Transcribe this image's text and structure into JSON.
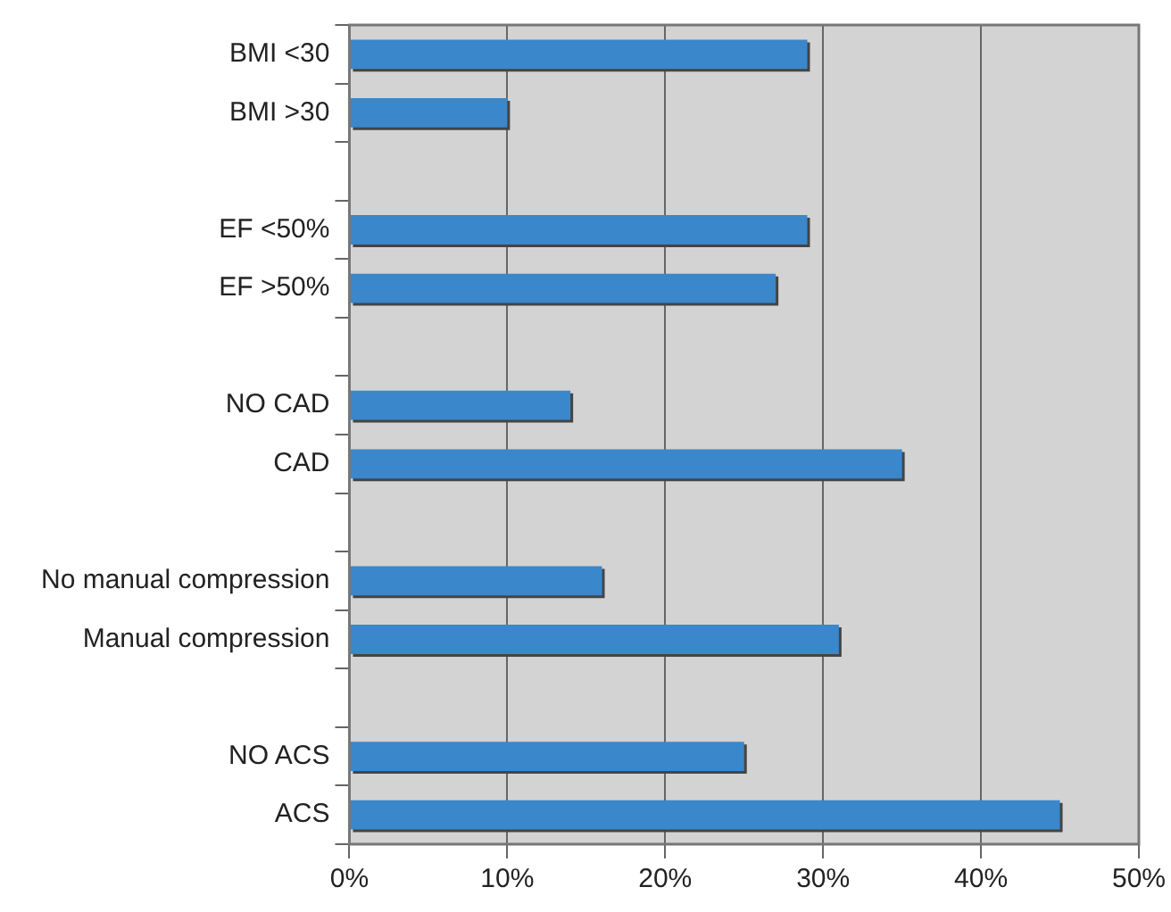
{
  "chart_data": {
    "type": "bar",
    "orientation": "horizontal",
    "categories": [
      "BMI <30",
      "BMI >30",
      null,
      "EF <50%",
      "EF >50%",
      null,
      "NO CAD",
      "CAD",
      null,
      "No manual compression",
      "Manual compression",
      null,
      "NO ACS",
      "ACS"
    ],
    "values": [
      29,
      10,
      null,
      29,
      27,
      null,
      14,
      35,
      null,
      16,
      31,
      null,
      25,
      45
    ],
    "color": "#3a87cc",
    "xlim": [
      0,
      50
    ],
    "xticks": [
      {
        "value": 0,
        "label": "0%"
      },
      {
        "value": 10,
        "label": "10%"
      },
      {
        "value": 20,
        "label": "20%"
      },
      {
        "value": 30,
        "label": "30%"
      },
      {
        "value": 40,
        "label": "40%"
      },
      {
        "value": 50,
        "label": "50%"
      }
    ],
    "grid": "x",
    "legend": false
  }
}
